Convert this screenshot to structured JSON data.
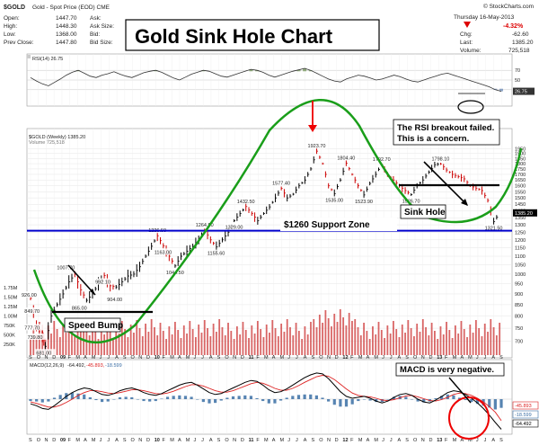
{
  "header": {
    "symbol": "$GOLD",
    "desc": "Gold - Spot Price (EOD) CME",
    "copyright": "© StockCharts.com",
    "date": "Thursday 16-May-2013",
    "pct_change": "-4.32%",
    "open_label": "Open:",
    "open": "1447.70",
    "high_label": "High:",
    "high": "1448.30",
    "low_label": "Low:",
    "low": "1368.00",
    "prev_label": "Prev Close:",
    "prev": "1447.80",
    "ask_label": "Ask:",
    "ask_size_label": "Ask Size:",
    "bid_label": "Bid:",
    "bid_size_label": "Bid Size:",
    "chg_label": "Chg:",
    "chg": "-62.60",
    "last_label": "Last:",
    "last": "1385.20",
    "vol_label": "Volume:",
    "volume": "725,518"
  },
  "colors": {
    "price_up": "#000000",
    "price_down": "#cc0000",
    "sinkhole_curve": "#1a9e1a",
    "support_line": "#0000cc",
    "volume_bar": "#cc3333",
    "macd_line": "#000000",
    "macd_signal": "#dd2222",
    "macd_hist": "#3a6ea5",
    "rsi_line": "#333333",
    "rsi_fill": "#6b8e4e",
    "red_arrow": "#ee0000"
  },
  "chart_data": [
    {
      "type": "line",
      "title": "Gold Sink Hole Chart",
      "panel": "price",
      "legend": "$GOLD (Weekly) 1385.20",
      "sublegend": "Volume 725,518",
      "scale": "log",
      "y_ticks": [
        700,
        750,
        800,
        850,
        900,
        950,
        1000,
        1050,
        1100,
        1150,
        1200,
        1250,
        1300,
        1350,
        1400,
        1450,
        1500,
        1550,
        1600,
        1650,
        1700,
        1750,
        1800,
        1850,
        1900,
        1950
      ],
      "last_price_tag": "1385.20",
      "volume_ticks": [
        "1.75M",
        "1.50M",
        "1.25M",
        "1.00M",
        "750K",
        "500K",
        "250K"
      ],
      "x_labels": [
        "S",
        "O",
        "N",
        "D",
        "09",
        "F",
        "M",
        "A",
        "M",
        "J",
        "J",
        "A",
        "S",
        "O",
        "N",
        "D",
        "10",
        "F",
        "M",
        "A",
        "M",
        "J",
        "J",
        "A",
        "S",
        "O",
        "N",
        "D",
        "11",
        "F",
        "M",
        "A",
        "M",
        "J",
        "J",
        "A",
        "S",
        "O",
        "N",
        "D",
        "12",
        "F",
        "M",
        "A",
        "M",
        "J",
        "J",
        "A",
        "S",
        "O",
        "N",
        "D",
        "13",
        "F",
        "M",
        "A",
        "M",
        "J",
        "J",
        "A",
        "S"
      ],
      "bold_x_labels": [
        "09",
        "10",
        "11",
        "12",
        "13"
      ],
      "price_points": [
        {
          "x": 0,
          "y": 880
        },
        {
          "x": 2,
          "y": 760
        },
        {
          "x": 4,
          "y": 730
        },
        {
          "x": 5,
          "y": 681
        },
        {
          "x": 7,
          "y": 800
        },
        {
          "x": 9,
          "y": 850
        },
        {
          "x": 11,
          "y": 900
        },
        {
          "x": 13,
          "y": 960
        },
        {
          "x": 15,
          "y": 1000
        },
        {
          "x": 17,
          "y": 920
        },
        {
          "x": 19,
          "y": 870
        },
        {
          "x": 21,
          "y": 900
        },
        {
          "x": 23,
          "y": 950
        },
        {
          "x": 25,
          "y": 992.1
        },
        {
          "x": 27,
          "y": 940
        },
        {
          "x": 29,
          "y": 934
        },
        {
          "x": 31,
          "y": 960
        },
        {
          "x": 33,
          "y": 990
        },
        {
          "x": 35,
          "y": 1000
        },
        {
          "x": 37,
          "y": 1040
        },
        {
          "x": 39,
          "y": 1100
        },
        {
          "x": 41,
          "y": 1160
        },
        {
          "x": 43,
          "y": 1226.5
        },
        {
          "x": 45,
          "y": 1163
        },
        {
          "x": 47,
          "y": 1100
        },
        {
          "x": 49,
          "y": 1044.5
        },
        {
          "x": 51,
          "y": 1100
        },
        {
          "x": 53,
          "y": 1130
        },
        {
          "x": 55,
          "y": 1160
        },
        {
          "x": 57,
          "y": 1200
        },
        {
          "x": 59,
          "y": 1264.5
        },
        {
          "x": 61,
          "y": 1200
        },
        {
          "x": 63,
          "y": 1155.6
        },
        {
          "x": 65,
          "y": 1200
        },
        {
          "x": 67,
          "y": 1250
        },
        {
          "x": 69,
          "y": 1329
        },
        {
          "x": 71,
          "y": 1380
        },
        {
          "x": 73,
          "y": 1432.5
        },
        {
          "x": 75,
          "y": 1380
        },
        {
          "x": 77,
          "y": 1329
        },
        {
          "x": 79,
          "y": 1380
        },
        {
          "x": 81,
          "y": 1430
        },
        {
          "x": 83,
          "y": 1500
        },
        {
          "x": 85,
          "y": 1577.4
        },
        {
          "x": 87,
          "y": 1500
        },
        {
          "x": 89,
          "y": 1530
        },
        {
          "x": 91,
          "y": 1600
        },
        {
          "x": 93,
          "y": 1650
        },
        {
          "x": 95,
          "y": 1750
        },
        {
          "x": 97,
          "y": 1923.7
        },
        {
          "x": 99,
          "y": 1800
        },
        {
          "x": 101,
          "y": 1600
        },
        {
          "x": 103,
          "y": 1535
        },
        {
          "x": 105,
          "y": 1650
        },
        {
          "x": 107,
          "y": 1804.4
        },
        {
          "x": 109,
          "y": 1700
        },
        {
          "x": 111,
          "y": 1600
        },
        {
          "x": 113,
          "y": 1523.9
        },
        {
          "x": 115,
          "y": 1620
        },
        {
          "x": 117,
          "y": 1700
        },
        {
          "x": 119,
          "y": 1792.7
        },
        {
          "x": 121,
          "y": 1700
        },
        {
          "x": 123,
          "y": 1650
        },
        {
          "x": 125,
          "y": 1600
        },
        {
          "x": 127,
          "y": 1560
        },
        {
          "x": 129,
          "y": 1526.7
        },
        {
          "x": 131,
          "y": 1600
        },
        {
          "x": 133,
          "y": 1650
        },
        {
          "x": 135,
          "y": 1720
        },
        {
          "x": 137,
          "y": 1790
        },
        {
          "x": 139,
          "y": 1798.1
        },
        {
          "x": 141,
          "y": 1740
        },
        {
          "x": 143,
          "y": 1700
        },
        {
          "x": 145,
          "y": 1680
        },
        {
          "x": 147,
          "y": 1660
        },
        {
          "x": 149,
          "y": 1600
        },
        {
          "x": 151,
          "y": 1580
        },
        {
          "x": 153,
          "y": 1560
        },
        {
          "x": 155,
          "y": 1480
        },
        {
          "x": 157,
          "y": 1321.5
        },
        {
          "x": 159,
          "y": 1385.2
        }
      ],
      "price_labels": [
        {
          "x": 0,
          "y": 926,
          "text": "926.00"
        },
        {
          "x": 1,
          "y": 849.7,
          "text": "849.70"
        },
        {
          "x": 1,
          "y": 777.7,
          "text": "777.70"
        },
        {
          "x": 2,
          "y": 739.8,
          "text": "739.80"
        },
        {
          "x": 5,
          "y": 681,
          "text": "681.00"
        },
        {
          "x": 12,
          "y": 1007.7,
          "text": "1007.70"
        },
        {
          "x": 17,
          "y": 865,
          "text": "865.00"
        },
        {
          "x": 25,
          "y": 992.1,
          "text": "992.10"
        },
        {
          "x": 29,
          "y": 904,
          "text": "904.00"
        },
        {
          "x": 43,
          "y": 1226.5,
          "text": "1226.50"
        },
        {
          "x": 45,
          "y": 1163,
          "text": "1163.00"
        },
        {
          "x": 49,
          "y": 1044.5,
          "text": "1044.50"
        },
        {
          "x": 59,
          "y": 1264.5,
          "text": "1264.50"
        },
        {
          "x": 63,
          "y": 1155.6,
          "text": "1155.60"
        },
        {
          "x": 69,
          "y": 1329,
          "text": "1329.00"
        },
        {
          "x": 73,
          "y": 1432.5,
          "text": "1432.50"
        },
        {
          "x": 85,
          "y": 1577.4,
          "text": "1577.40"
        },
        {
          "x": 97,
          "y": 1923.7,
          "text": "1923.70"
        },
        {
          "x": 103,
          "y": 1535,
          "text": "1535.00"
        },
        {
          "x": 107,
          "y": 1804.4,
          "text": "1804.40"
        },
        {
          "x": 113,
          "y": 1523.9,
          "text": "1523.90"
        },
        {
          "x": 119,
          "y": 1792.7,
          "text": "1792.70"
        },
        {
          "x": 129,
          "y": 1526.7,
          "text": "1526.70"
        },
        {
          "x": 139,
          "y": 1798.1,
          "text": "1798.10"
        },
        {
          "x": 157,
          "y": 1321.5,
          "text": "1321.50"
        }
      ],
      "support_value": 1260,
      "annotations": {
        "support": "$1260 Support Zone",
        "speed_bump": "Speed Bump",
        "sink_hole": "Sink Hole",
        "rsi_note_1": "The RSI breakout failed.",
        "rsi_note_2": "This is a concern.",
        "macd_note": "MACD is very negative."
      }
    },
    {
      "type": "line",
      "panel": "rsi",
      "legend": "RSI(14) 26.75",
      "y_ticks": [
        70,
        50,
        30
      ],
      "last_tag": "26.75",
      "values": [
        55,
        48,
        42,
        38,
        45,
        52,
        60,
        66,
        70,
        64,
        58,
        55,
        60,
        63,
        67,
        62,
        58,
        55,
        60,
        65,
        68,
        70,
        66,
        60,
        54,
        50,
        56,
        62,
        66,
        70,
        68,
        63,
        58,
        56,
        60,
        64,
        68,
        72,
        70,
        66,
        60,
        56,
        60,
        64,
        68,
        71,
        74,
        70,
        64,
        58,
        52,
        48,
        46,
        52,
        56,
        60,
        58,
        54,
        50,
        52,
        56,
        60,
        57,
        52,
        48,
        46,
        50,
        54,
        58,
        62,
        64,
        60,
        56,
        52,
        48,
        44,
        40,
        36,
        30,
        26.75
      ]
    },
    {
      "type": "line",
      "panel": "macd",
      "legend": "MACD(12,26,9) -64.492, -45.893, -18.599",
      "legend_parts": [
        "MACD(12,26,9)",
        "-64.492,",
        "-45.893,",
        "-18.599"
      ],
      "right_tags": [
        "-45.893",
        "-18.599",
        "-64.492"
      ],
      "macd": [
        -10,
        -14,
        -20,
        -22,
        -14,
        -4,
        6,
        14,
        20,
        24,
        22,
        16,
        10,
        8,
        12,
        18,
        22,
        24,
        20,
        14,
        10,
        8,
        12,
        18,
        24,
        30,
        34,
        36,
        30,
        22,
        14,
        10,
        12,
        18,
        24,
        30,
        36,
        40,
        38,
        30,
        20,
        14,
        16,
        22,
        30,
        38,
        46,
        52,
        56,
        54,
        44,
        30,
        16,
        6,
        2,
        4,
        6,
        2,
        -4,
        -8,
        -4,
        4,
        10,
        12,
        8,
        0,
        -6,
        -8,
        -2,
        6,
        14,
        18,
        16,
        10,
        2,
        -8,
        -20,
        -34,
        -50,
        -64.492
      ],
      "signal": [
        -6,
        -9,
        -13,
        -17,
        -17,
        -13,
        -7,
        0,
        8,
        14,
        18,
        18,
        16,
        13,
        12,
        14,
        17,
        20,
        20,
        18,
        15,
        12,
        11,
        13,
        17,
        22,
        27,
        31,
        31,
        28,
        23,
        18,
        15,
        15,
        18,
        23,
        28,
        33,
        36,
        34,
        29,
        23,
        19,
        19,
        23,
        29,
        36,
        42,
        48,
        51,
        49,
        42,
        32,
        22,
        13,
        8,
        6,
        5,
        2,
        -2,
        -3,
        -1,
        3,
        7,
        8,
        5,
        1,
        -3,
        -4,
        -1,
        4,
        10,
        13,
        12,
        8,
        2,
        -6,
        -16,
        -28,
        -45.893
      ]
    }
  ]
}
